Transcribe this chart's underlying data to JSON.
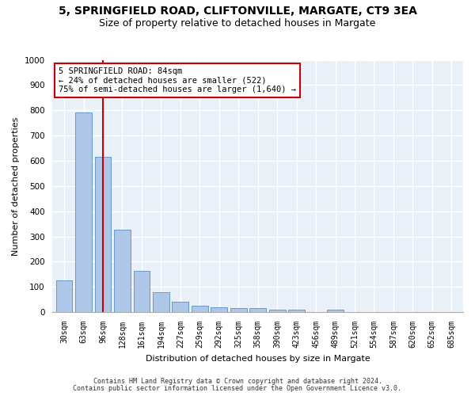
{
  "title1": "5, SPRINGFIELD ROAD, CLIFTONVILLE, MARGATE, CT9 3EA",
  "title2": "Size of property relative to detached houses in Margate",
  "xlabel": "Distribution of detached houses by size in Margate",
  "ylabel": "Number of detached properties",
  "categories": [
    "30sqm",
    "63sqm",
    "96sqm",
    "128sqm",
    "161sqm",
    "194sqm",
    "227sqm",
    "259sqm",
    "292sqm",
    "325sqm",
    "358sqm",
    "390sqm",
    "423sqm",
    "456sqm",
    "489sqm",
    "521sqm",
    "554sqm",
    "587sqm",
    "620sqm",
    "652sqm",
    "685sqm"
  ],
  "values": [
    125,
    790,
    615,
    328,
    163,
    78,
    40,
    25,
    20,
    15,
    15,
    10,
    10,
    0,
    10,
    0,
    0,
    0,
    0,
    0,
    0
  ],
  "bar_color": "#aec6e8",
  "bar_edge_color": "#5a8fc2",
  "vline_index": 2,
  "vline_color": "#cc0000",
  "annotation_text": "5 SPRINGFIELD ROAD: 84sqm\n← 24% of detached houses are smaller (522)\n75% of semi-detached houses are larger (1,640) →",
  "annotation_box_color": "#ffffff",
  "annotation_border_color": "#cc0000",
  "ylim": [
    0,
    1000
  ],
  "yticks": [
    0,
    100,
    200,
    300,
    400,
    500,
    600,
    700,
    800,
    900,
    1000
  ],
  "footer1": "Contains HM Land Registry data © Crown copyright and database right 2024.",
  "footer2": "Contains public sector information licensed under the Open Government Licence v3.0.",
  "bg_color": "#eaf0f8",
  "grid_color": "#ffffff",
  "fig_bg_color": "#ffffff",
  "title_fontsize": 10,
  "subtitle_fontsize": 9,
  "axis_label_fontsize": 8,
  "tick_fontsize": 7,
  "footer_fontsize": 6,
  "annotation_fontsize": 7.5
}
